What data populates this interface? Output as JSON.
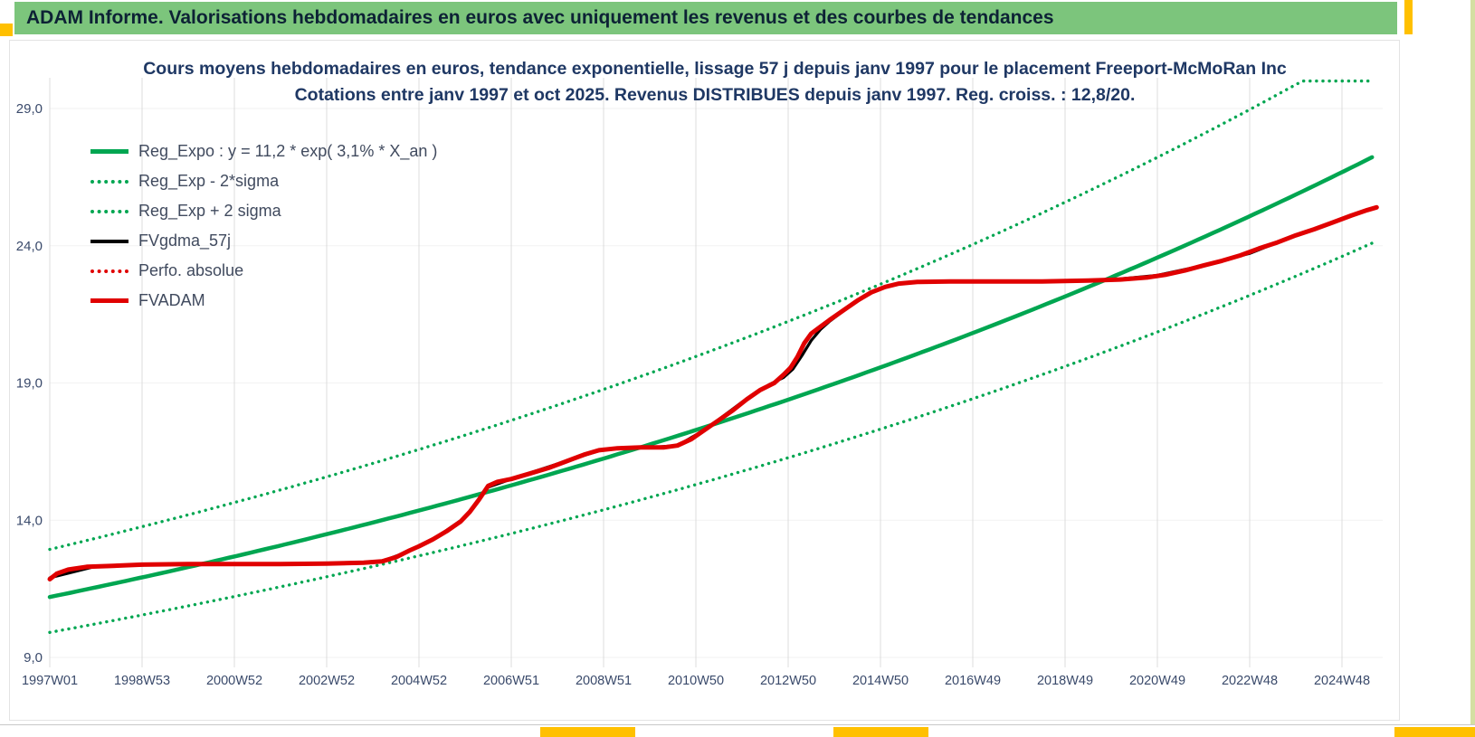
{
  "header": {
    "title": "ADAM Informe. Valorisations hebdomadaires en euros avec uniquement les revenus et des courbes de tendances"
  },
  "colors": {
    "header_bg": "#7CC57C",
    "accent_yellow": "#FFC000",
    "green_line": "#00A651",
    "red_line": "#E00000",
    "black_line": "#000000",
    "title_text": "#1F3864",
    "axis_text": "#3A4A6B",
    "grid": "#DCDCDC"
  },
  "chart_data": {
    "type": "line",
    "title_line1": "Cours moyens hebdomadaires en euros, tendance exponentielle, lissage 57 j depuis janv 1997 pour le placement Freeport-McMoRan Inc",
    "title_line2": "Cotations entre janv 1997 et oct 2025. Revenus DISTRIBUES depuis janv 1997. Reg. croiss. : 12,8/20.",
    "xlabel": "",
    "ylabel": "",
    "legend_position": "top-left",
    "grid": "vertical",
    "x_range_years": [
      1997.0,
      2025.75
    ],
    "ylim": [
      9.0,
      30.0
    ],
    "x_tick_years": [
      1997,
      1999,
      2001,
      2003,
      2005,
      2007,
      2009,
      2011,
      2013,
      2015,
      2017,
      2019,
      2021,
      2023,
      2025
    ],
    "x_tick_labels": [
      "1997W01",
      "1998W53",
      "2000W52",
      "2002W52",
      "2004W52",
      "2006W51",
      "2008W51",
      "2010W50",
      "2012W50",
      "2014W50",
      "2016W49",
      "2018W49",
      "2020W49",
      "2022W48",
      "2024W48"
    ],
    "y_ticks": [
      9,
      14,
      19,
      24,
      29
    ],
    "y_tick_labels": [
      "9,0",
      "14,0",
      "19,0",
      "24,0",
      "29,0"
    ],
    "regression": {
      "formula_label": "Reg_Expo : y = 11,2 * exp( 3,1% *  X_an )",
      "a": 11.2,
      "rate": 0.031,
      "x_origin_year": 1997.0,
      "upper_band_factor": 1.155,
      "lower_band_factor": 0.885,
      "upper_clip_value": 30.0
    },
    "legend": [
      {
        "label": "Reg_Expo : y = 11,2 * exp( 3,1% *  X_an )",
        "style": "solid",
        "color": "#00A651"
      },
      {
        "label": "Reg_Exp - 2*sigma",
        "style": "dotted",
        "color": "#00A651"
      },
      {
        "label": "Reg_Exp + 2 sigma",
        "style": "dotted",
        "color": "#00A651"
      },
      {
        "label": "FVgdma_57j",
        "style": "solid",
        "color": "#000000"
      },
      {
        "label": "Perfo. absolue",
        "style": "dotted",
        "color": "#E00000"
      },
      {
        "label": "FVADAM",
        "style": "solid-thick",
        "color": "#E00000"
      }
    ],
    "series": [
      {
        "name": "FVADAM",
        "points": [
          [
            1997.0,
            11.85
          ],
          [
            1997.15,
            12.05
          ],
          [
            1997.4,
            12.2
          ],
          [
            1997.8,
            12.3
          ],
          [
            1998.3,
            12.33
          ],
          [
            1999.0,
            12.38
          ],
          [
            2000.0,
            12.4
          ],
          [
            2001.0,
            12.4
          ],
          [
            2002.0,
            12.4
          ],
          [
            2003.0,
            12.42
          ],
          [
            2003.8,
            12.45
          ],
          [
            2004.2,
            12.5
          ],
          [
            2004.5,
            12.65
          ],
          [
            2004.8,
            12.9
          ],
          [
            2005.0,
            13.05
          ],
          [
            2005.3,
            13.3
          ],
          [
            2005.6,
            13.6
          ],
          [
            2005.9,
            13.95
          ],
          [
            2006.1,
            14.3
          ],
          [
            2006.3,
            14.75
          ],
          [
            2006.5,
            15.25
          ],
          [
            2006.7,
            15.4
          ],
          [
            2007.0,
            15.5
          ],
          [
            2007.4,
            15.7
          ],
          [
            2007.8,
            15.9
          ],
          [
            2008.2,
            16.15
          ],
          [
            2008.6,
            16.4
          ],
          [
            2008.9,
            16.55
          ],
          [
            2009.3,
            16.62
          ],
          [
            2009.8,
            16.65
          ],
          [
            2010.3,
            16.65
          ],
          [
            2010.6,
            16.72
          ],
          [
            2010.9,
            16.95
          ],
          [
            2011.2,
            17.3
          ],
          [
            2011.5,
            17.65
          ],
          [
            2011.8,
            18.0
          ],
          [
            2012.1,
            18.4
          ],
          [
            2012.4,
            18.75
          ],
          [
            2012.7,
            19.0
          ],
          [
            2012.9,
            19.3
          ],
          [
            2013.05,
            19.55
          ],
          [
            2013.2,
            19.95
          ],
          [
            2013.35,
            20.45
          ],
          [
            2013.5,
            20.8
          ],
          [
            2013.7,
            21.05
          ],
          [
            2013.9,
            21.3
          ],
          [
            2014.2,
            21.65
          ],
          [
            2014.5,
            22.0
          ],
          [
            2014.8,
            22.3
          ],
          [
            2015.1,
            22.5
          ],
          [
            2015.4,
            22.62
          ],
          [
            2015.8,
            22.68
          ],
          [
            2016.5,
            22.7
          ],
          [
            2017.5,
            22.7
          ],
          [
            2018.5,
            22.7
          ],
          [
            2019.5,
            22.73
          ],
          [
            2020.2,
            22.77
          ],
          [
            2020.8,
            22.85
          ],
          [
            2021.2,
            22.95
          ],
          [
            2021.6,
            23.1
          ],
          [
            2022.0,
            23.28
          ],
          [
            2022.4,
            23.45
          ],
          [
            2022.8,
            23.65
          ],
          [
            2023.2,
            23.9
          ],
          [
            2023.6,
            24.12
          ],
          [
            2024.0,
            24.38
          ],
          [
            2024.4,
            24.6
          ],
          [
            2024.8,
            24.85
          ],
          [
            2025.2,
            25.1
          ],
          [
            2025.55,
            25.3
          ],
          [
            2025.75,
            25.4
          ]
        ]
      },
      {
        "name": "FVgdma_57j",
        "points": [
          [
            1997.0,
            11.9
          ],
          [
            1998.0,
            12.32
          ],
          [
            2000.0,
            12.4
          ],
          [
            2002.0,
            12.4
          ],
          [
            2003.5,
            12.44
          ],
          [
            2004.2,
            12.5
          ],
          [
            2004.8,
            12.88
          ],
          [
            2005.4,
            13.4
          ],
          [
            2006.0,
            14.1
          ],
          [
            2006.5,
            15.2
          ],
          [
            2007.0,
            15.5
          ],
          [
            2008.0,
            16.05
          ],
          [
            2009.0,
            16.58
          ],
          [
            2010.0,
            16.65
          ],
          [
            2010.6,
            16.72
          ],
          [
            2011.2,
            17.3
          ],
          [
            2012.0,
            18.3
          ],
          [
            2012.6,
            18.95
          ],
          [
            2012.9,
            19.2
          ],
          [
            2013.1,
            19.5
          ],
          [
            2013.3,
            20.0
          ],
          [
            2013.5,
            20.55
          ],
          [
            2013.7,
            20.95
          ],
          [
            2013.9,
            21.25
          ],
          [
            2014.3,
            21.75
          ],
          [
            2014.8,
            22.3
          ],
          [
            2015.3,
            22.6
          ],
          [
            2016.0,
            22.7
          ],
          [
            2018.0,
            22.7
          ],
          [
            2020.0,
            22.76
          ],
          [
            2021.0,
            22.92
          ],
          [
            2022.0,
            23.28
          ],
          [
            2023.0,
            23.72
          ],
          [
            2024.0,
            24.38
          ],
          [
            2025.0,
            24.98
          ],
          [
            2025.7,
            25.38
          ]
        ]
      },
      {
        "name": "Perfo. absolue",
        "coincident_with": "FVADAM"
      }
    ]
  }
}
